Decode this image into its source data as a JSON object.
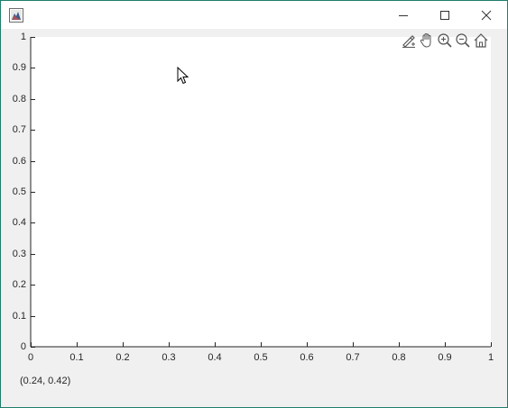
{
  "window": {
    "icons": {
      "app": "figure-app-icon",
      "minimize": "minimize-icon",
      "maximize": "maximize-icon",
      "close": "close-icon"
    }
  },
  "toolbar": {
    "tools": [
      "brush-icon",
      "pan-hand-icon",
      "zoom-in-icon",
      "zoom-out-icon",
      "home-icon"
    ]
  },
  "readout": {
    "text": "(0.24, 0.42)"
  },
  "chart_data": {
    "type": "scatter",
    "series": [],
    "xlim": [
      0,
      1
    ],
    "ylim": [
      0,
      1
    ],
    "xticks": [
      "0",
      "0.1",
      "0.2",
      "0.3",
      "0.4",
      "0.5",
      "0.6",
      "0.7",
      "0.8",
      "0.9",
      "1"
    ],
    "yticks": [
      "0",
      "0.1",
      "0.2",
      "0.3",
      "0.4",
      "0.5",
      "0.6",
      "0.7",
      "0.8",
      "0.9",
      "1"
    ],
    "grid": false
  },
  "colors": {
    "border": "#1e7d6a",
    "figure_bg": "#f0f0f0",
    "axes_bg": "#ffffff",
    "axis": "#262626"
  }
}
